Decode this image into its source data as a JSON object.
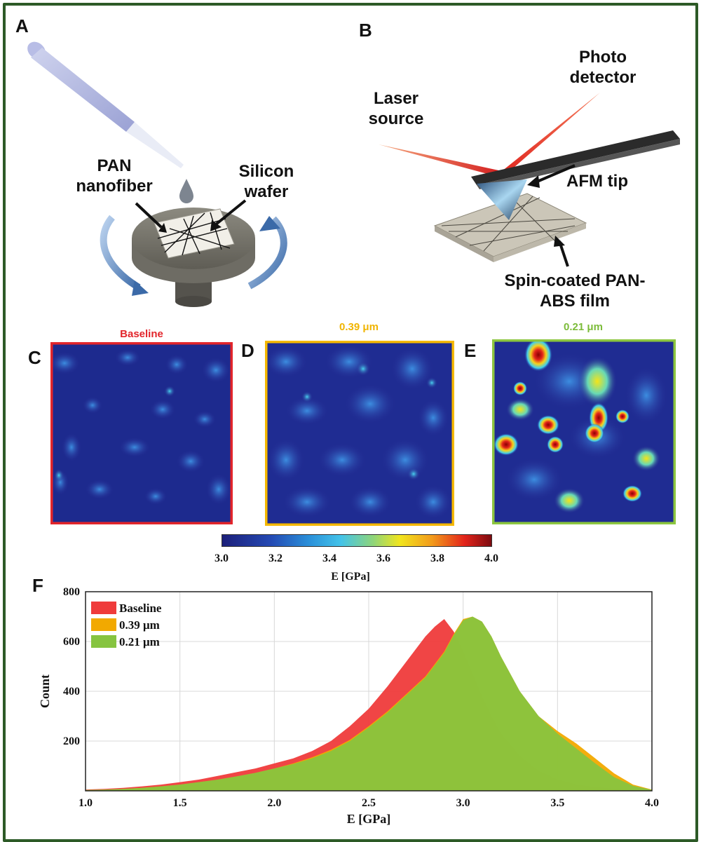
{
  "panels": {
    "a": "A",
    "b": "B",
    "c": "C",
    "d": "D",
    "e": "E",
    "f": "F"
  },
  "panel_a": {
    "label_pan": "PAN\nnanofiber",
    "label_si": "Silicon\nwafer"
  },
  "panel_b": {
    "label_laser": "Laser\nsource",
    "label_photo": "Photo\ndetector",
    "label_tip": "AFM tip",
    "label_film": "Spin-coated PAN-\nABS film"
  },
  "maps": [
    {
      "title": "Baseline",
      "color": "#e2252b"
    },
    {
      "title": "0.39 μm",
      "color": "#f5b800"
    },
    {
      "title": "0.21 μm",
      "color": "#8cc63f"
    }
  ],
  "colorbar": {
    "ticks": [
      "3.0",
      "3.2",
      "3.4",
      "3.6",
      "3.8",
      "4.0"
    ],
    "label": "E [GPa]"
  },
  "chart_data": {
    "type": "area",
    "xlabel": "E [GPa]",
    "ylabel": "Count",
    "xlim": [
      1.0,
      4.0
    ],
    "ylim": [
      0,
      800
    ],
    "xticks": [
      "1.0",
      "1.5",
      "2.0",
      "2.5",
      "3.0",
      "3.5",
      "4.0"
    ],
    "yticks": [
      "200",
      "400",
      "600",
      "800"
    ],
    "grid": true,
    "legend_position": "top-left",
    "x": [
      1.0,
      1.1,
      1.2,
      1.3,
      1.4,
      1.5,
      1.6,
      1.7,
      1.8,
      1.9,
      2.0,
      2.1,
      2.2,
      2.3,
      2.4,
      2.5,
      2.6,
      2.7,
      2.8,
      2.85,
      2.9,
      2.95,
      3.0,
      3.05,
      3.1,
      3.15,
      3.2,
      3.3,
      3.4,
      3.5,
      3.6,
      3.7,
      3.8,
      3.9,
      4.0
    ],
    "series": [
      {
        "name": "Baseline",
        "color": "#ef3b3b",
        "values": [
          5,
          8,
          12,
          18,
          25,
          35,
          45,
          60,
          75,
          90,
          110,
          130,
          160,
          200,
          260,
          330,
          420,
          520,
          620,
          660,
          690,
          640,
          560,
          470,
          380,
          300,
          230,
          140,
          80,
          45,
          25,
          15,
          8,
          4,
          2
        ]
      },
      {
        "name": "0.39 μm",
        "color": "#f2a900",
        "values": [
          3,
          5,
          8,
          12,
          18,
          25,
          35,
          45,
          58,
          72,
          90,
          110,
          135,
          165,
          205,
          260,
          320,
          390,
          460,
          510,
          560,
          630,
          690,
          700,
          680,
          620,
          540,
          400,
          300,
          240,
          190,
          130,
          70,
          25,
          5
        ]
      },
      {
        "name": "0.21 μm",
        "color": "#86c440",
        "values": [
          3,
          5,
          8,
          12,
          18,
          25,
          35,
          45,
          58,
          72,
          90,
          108,
          130,
          160,
          200,
          255,
          315,
          385,
          455,
          505,
          555,
          625,
          685,
          700,
          680,
          620,
          540,
          400,
          300,
          230,
          170,
          110,
          55,
          20,
          4
        ]
      }
    ]
  }
}
